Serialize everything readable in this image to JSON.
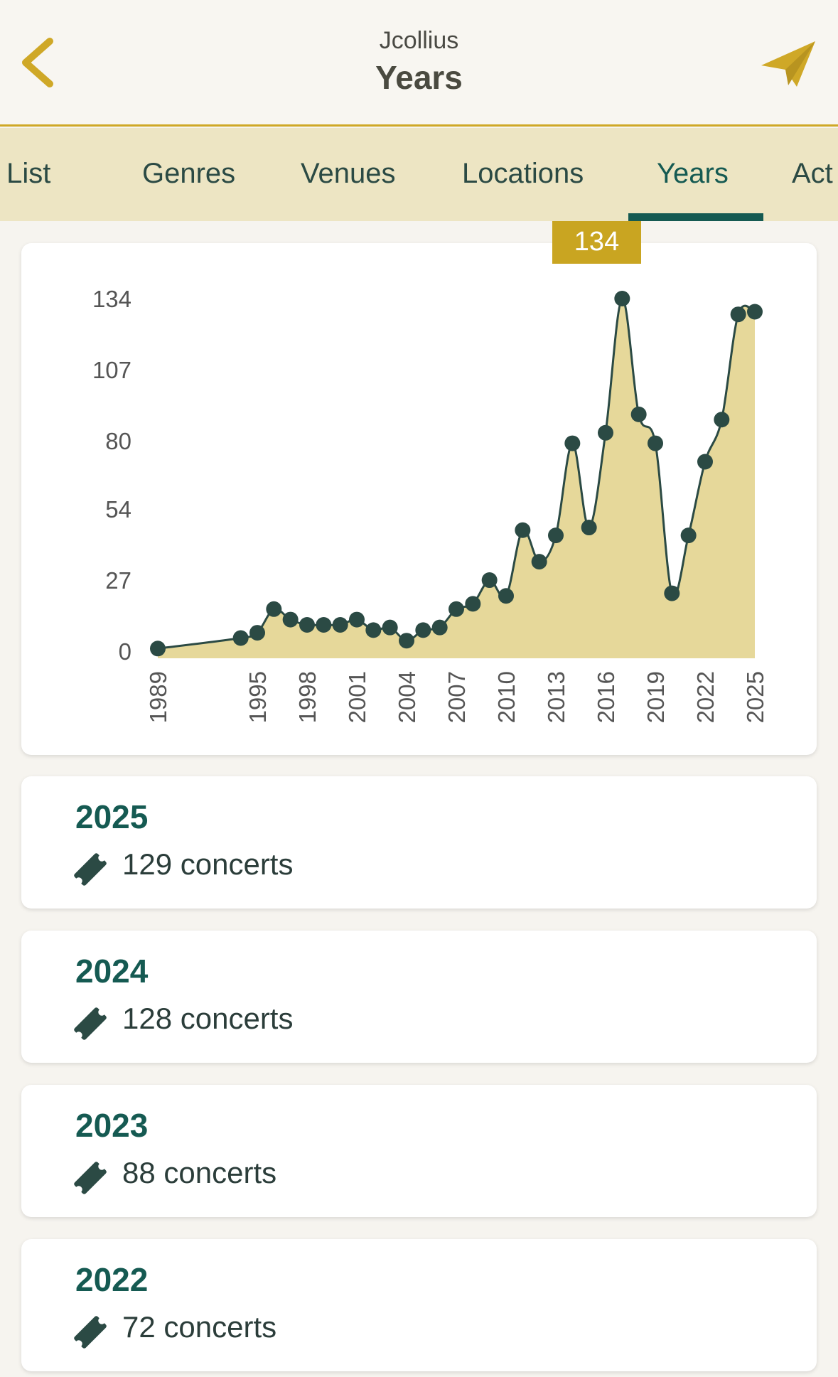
{
  "header": {
    "subtitle": "Jcollius",
    "title": "Years"
  },
  "colors": {
    "accent": "#cfa827",
    "primary": "#155a52",
    "area": "#e6d89a",
    "line": "#2b4a44"
  },
  "tabs": [
    {
      "label": "Set List",
      "active": false
    },
    {
      "label": "Genres",
      "active": false
    },
    {
      "label": "Venues",
      "active": false
    },
    {
      "label": "Locations",
      "active": false
    },
    {
      "label": "Years",
      "active": true
    },
    {
      "label": "Act",
      "active": false
    }
  ],
  "tooltip": {
    "value": "134"
  },
  "chart_data": {
    "type": "area",
    "x": [
      1989,
      1994,
      1995,
      1996,
      1997,
      1998,
      1999,
      2000,
      2001,
      2002,
      2003,
      2004,
      2005,
      2006,
      2007,
      2008,
      2009,
      2010,
      2011,
      2012,
      2013,
      2014,
      2015,
      2016,
      2017,
      2018,
      2019,
      2020,
      2021,
      2022,
      2023,
      2024,
      2025
    ],
    "values": [
      1,
      5,
      7,
      16,
      12,
      10,
      10,
      10,
      12,
      8,
      9,
      4,
      8,
      9,
      16,
      18,
      27,
      21,
      46,
      34,
      44,
      79,
      47,
      83,
      134,
      90,
      79,
      22,
      44,
      72,
      88,
      128,
      129
    ],
    "y_ticks": [
      "0",
      "27",
      "54",
      "80",
      "107",
      "134"
    ],
    "x_tick_labels": [
      "1989",
      "1995",
      "1998",
      "2001",
      "2004",
      "2007",
      "2010",
      "2013",
      "2016",
      "2019",
      "2022",
      "2025"
    ],
    "ylim": [
      0,
      134
    ]
  },
  "years": [
    {
      "year": "2025",
      "count": "129 concerts"
    },
    {
      "year": "2024",
      "count": "128 concerts"
    },
    {
      "year": "2023",
      "count": "88 concerts"
    },
    {
      "year": "2022",
      "count": "72 concerts"
    }
  ],
  "icons": {
    "back": "chevron-left-icon",
    "share": "paper-plane-icon",
    "ticket": "ticket-icon"
  }
}
